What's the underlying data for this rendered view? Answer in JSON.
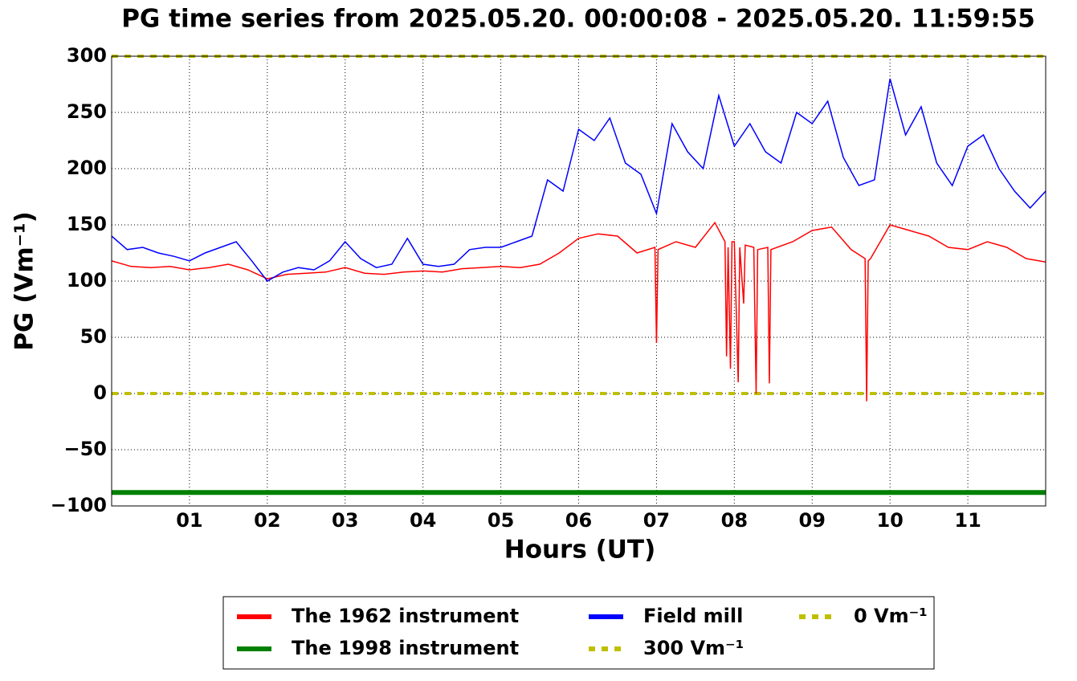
{
  "chart_data": {
    "type": "line",
    "title": "PG time series from 2025.05.20. 00:00:08 - 2025.05.20. 11:59:55",
    "xlabel": "Hours (UT)",
    "ylabel": "PG (Vm⁻¹)",
    "xlim": [
      0,
      12
    ],
    "ylim": [
      -100,
      300
    ],
    "xticks": [
      {
        "value": 1,
        "label": "01"
      },
      {
        "value": 2,
        "label": "02"
      },
      {
        "value": 3,
        "label": "03"
      },
      {
        "value": 4,
        "label": "04"
      },
      {
        "value": 5,
        "label": "05"
      },
      {
        "value": 6,
        "label": "06"
      },
      {
        "value": 7,
        "label": "07"
      },
      {
        "value": 8,
        "label": "08"
      },
      {
        "value": 9,
        "label": "09"
      },
      {
        "value": 10,
        "label": "10"
      },
      {
        "value": 11,
        "label": "11"
      }
    ],
    "yticks": [
      {
        "value": -100,
        "label": "−100"
      },
      {
        "value": -50,
        "label": "−50"
      },
      0,
      50,
      100,
      150,
      200,
      250,
      300
    ],
    "grid": true,
    "legend": "below",
    "series": [
      {
        "name": "The 1962 instrument",
        "color": "#ff0000",
        "linewidth": 1.5,
        "x": [
          0,
          0.25,
          0.5,
          0.75,
          1,
          1.25,
          1.5,
          1.75,
          2,
          2.25,
          2.5,
          2.75,
          3,
          3.25,
          3.5,
          3.75,
          4,
          4.25,
          4.5,
          4.75,
          5,
          5.25,
          5.5,
          5.75,
          6,
          6.25,
          6.5,
          6.75,
          6.98,
          7.0,
          7.02,
          7.25,
          7.5,
          7.75,
          7.88,
          7.9,
          7.92,
          7.95,
          7.97,
          8,
          8.05,
          8.07,
          8.12,
          8.14,
          8.25,
          8.28,
          8.3,
          8.43,
          8.45,
          8.47,
          8.75,
          9,
          9.25,
          9.5,
          9.68,
          9.7,
          9.72,
          9.75,
          10,
          10.25,
          10.5,
          10.75,
          11,
          11.25,
          11.5,
          11.75,
          12
        ],
        "values": [
          118,
          113,
          112,
          113,
          110,
          112,
          115,
          110,
          102,
          106,
          107,
          108,
          112,
          107,
          106,
          108,
          109,
          108,
          111,
          112,
          113,
          112,
          115,
          125,
          138,
          142,
          140,
          125,
          130,
          45,
          128,
          135,
          130,
          152,
          135,
          33,
          130,
          22,
          135,
          135,
          10,
          130,
          80,
          132,
          130,
          0,
          128,
          130,
          9,
          128,
          135,
          145,
          148,
          128,
          120,
          -7,
          118,
          120,
          150,
          145,
          140,
          130,
          128,
          135,
          130,
          120,
          117
        ]
      },
      {
        "name": "The 1998 instrument",
        "color": "#008000",
        "linewidth": 6,
        "x": [
          0,
          12
        ],
        "values": [
          -88,
          -88
        ]
      },
      {
        "name": "Field mill",
        "color": "#0000ff",
        "linewidth": 1.5,
        "x": [
          0,
          0.2,
          0.4,
          0.6,
          0.8,
          1,
          1.2,
          1.4,
          1.6,
          1.8,
          2,
          2.2,
          2.4,
          2.6,
          2.8,
          3,
          3.2,
          3.4,
          3.6,
          3.8,
          4,
          4.2,
          4.4,
          4.6,
          4.8,
          5,
          5.2,
          5.4,
          5.6,
          5.8,
          6,
          6.2,
          6.4,
          6.6,
          6.8,
          7,
          7.2,
          7.4,
          7.6,
          7.8,
          8,
          8.2,
          8.4,
          8.6,
          8.8,
          9,
          9.2,
          9.4,
          9.6,
          9.8,
          10,
          10.2,
          10.4,
          10.6,
          10.8,
          11,
          11.2,
          11.4,
          11.6,
          11.8,
          12
        ],
        "values": [
          140,
          128,
          130,
          125,
          122,
          118,
          125,
          130,
          135,
          118,
          100,
          108,
          112,
          110,
          118,
          135,
          120,
          112,
          115,
          138,
          115,
          113,
          115,
          128,
          130,
          130,
          135,
          140,
          190,
          180,
          235,
          225,
          245,
          205,
          195,
          160,
          240,
          215,
          200,
          265,
          220,
          240,
          215,
          205,
          250,
          240,
          260,
          210,
          185,
          190,
          280,
          230,
          255,
          205,
          185,
          220,
          230,
          200,
          180,
          165,
          180
        ]
      },
      {
        "name": "300 Vm⁻¹",
        "color": "#bfbf00",
        "linewidth": 4,
        "linestyle": "dotted",
        "x": [
          0,
          12
        ],
        "values": [
          300,
          300
        ]
      },
      {
        "name": "0 Vm⁻¹",
        "color": "#bfbf00",
        "linewidth": 4,
        "linestyle": "dotted",
        "x": [
          0,
          12
        ],
        "values": [
          0,
          0
        ]
      }
    ]
  }
}
